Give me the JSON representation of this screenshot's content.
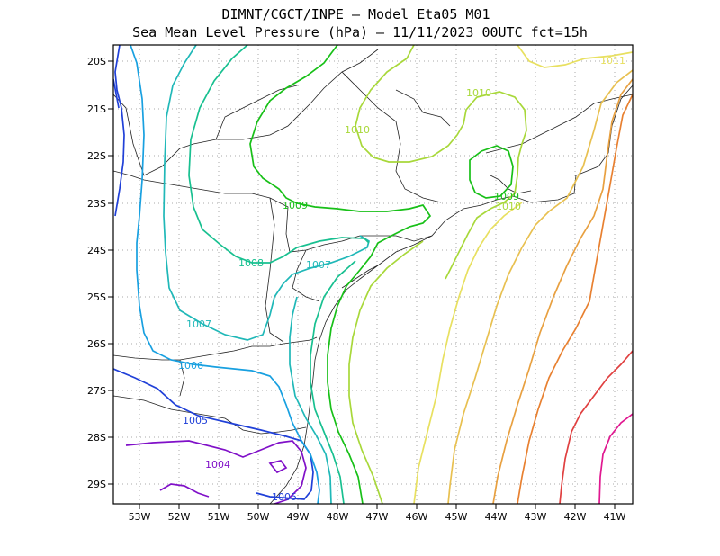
{
  "title": {
    "line1": "DIMNT/CGCT/INPE –  Model Eta05_M01_",
    "line2": "Sea Mean Level Pressure (hPa) – 11/11/2023 00UTC fct=15h"
  },
  "axes": {
    "lon_labels": [
      "53W",
      "52W",
      "51W",
      "50W",
      "49W",
      "48W",
      "47W",
      "46W",
      "45W",
      "44W",
      "43W",
      "42W",
      "41W"
    ],
    "lat_labels": [
      "20S",
      "21S",
      "22S",
      "23S",
      "24S",
      "25S",
      "26S",
      "27S",
      "28S",
      "29S"
    ]
  },
  "contour_labels": [
    {
      "text": "1011",
      "color": "#e8e060"
    },
    {
      "text": "1010",
      "color": "#a8d83a"
    },
    {
      "text": "1010",
      "color": "#a8d83a"
    },
    {
      "text": "1010",
      "color": "#a8d83a"
    },
    {
      "text": "1009",
      "color": "#18c018"
    },
    {
      "text": "1009",
      "color": "#18c018"
    },
    {
      "text": "1008",
      "color": "#18c090"
    },
    {
      "text": "1007",
      "color": "#20b8b8"
    },
    {
      "text": "1007",
      "color": "#20b8b8"
    },
    {
      "text": "1006",
      "color": "#18a0e0"
    },
    {
      "text": "1005",
      "color": "#2040d8"
    },
    {
      "text": "1005",
      "color": "#2040d8"
    },
    {
      "text": "1004",
      "color": "#8010c8"
    }
  ],
  "colors": {
    "c1004": "#8010c8",
    "c1005": "#2040d8",
    "c1006": "#18a0e0",
    "c1007": "#20b8b8",
    "c1008": "#18c090",
    "c1009": "#18c018",
    "c1010": "#a8d83a",
    "c1011": "#e8e060",
    "c1012": "#e8c050",
    "c1013": "#e8a040",
    "c1014": "#e88030",
    "c1015": "#e04040",
    "c1016": "#e01890"
  }
}
